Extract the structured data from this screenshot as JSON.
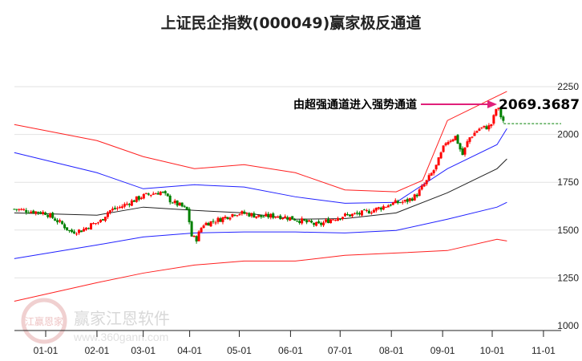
{
  "chart_data": {
    "type": "candlestick-channel",
    "title": "上证民企指数(000049)赢家极反通道",
    "ylim": [
      1000,
      2250
    ],
    "yticks": [
      2250,
      2000,
      1750,
      1500,
      1250,
      1000
    ],
    "xticks": [
      {
        "label": "01-01",
        "day": 0
      },
      {
        "label": "02-01",
        "day": 31
      },
      {
        "label": "03-01",
        "day": 59
      },
      {
        "label": "04-01",
        "day": 90
      },
      {
        "label": "05-01",
        "day": 120
      },
      {
        "label": "06-01",
        "day": 151
      },
      {
        "label": "07-01",
        "day": 181
      },
      {
        "label": "08-01",
        "day": 212
      },
      {
        "label": "09-01",
        "day": 243
      },
      {
        "label": "10-01",
        "day": 273
      },
      {
        "label": "11-01",
        "day": 304
      }
    ],
    "price_anchors": [
      [
        -19,
        1610
      ],
      [
        -10,
        1600
      ],
      [
        0,
        1590
      ],
      [
        5,
        1560
      ],
      [
        10,
        1530
      ],
      [
        15,
        1490
      ],
      [
        22,
        1500
      ],
      [
        28,
        1530
      ],
      [
        33,
        1545
      ],
      [
        38,
        1600
      ],
      [
        45,
        1620
      ],
      [
        52,
        1650
      ],
      [
        58,
        1675
      ],
      [
        64,
        1690
      ],
      [
        70,
        1700
      ],
      [
        76,
        1650
      ],
      [
        82,
        1625
      ],
      [
        86,
        1600
      ],
      [
        88,
        1470
      ],
      [
        91,
        1450
      ],
      [
        95,
        1530
      ],
      [
        105,
        1555
      ],
      [
        115,
        1590
      ],
      [
        122,
        1585
      ],
      [
        130,
        1570
      ],
      [
        140,
        1575
      ],
      [
        150,
        1560
      ],
      [
        158,
        1540
      ],
      [
        165,
        1525
      ],
      [
        172,
        1555
      ],
      [
        180,
        1575
      ],
      [
        190,
        1585
      ],
      [
        200,
        1610
      ],
      [
        210,
        1640
      ],
      [
        218,
        1650
      ],
      [
        224,
        1680
      ],
      [
        230,
        1750
      ],
      [
        236,
        1830
      ],
      [
        242,
        1960
      ],
      [
        248,
        1990
      ],
      [
        252,
        1890
      ],
      [
        256,
        1980
      ],
      [
        262,
        2030
      ],
      [
        268,
        2040
      ],
      [
        270,
        2060
      ],
      [
        273,
        2150
      ],
      [
        275,
        2100
      ],
      [
        277,
        2069
      ]
    ],
    "channels": [
      {
        "name": "upper-red",
        "color": "#ff2020",
        "points": [
          [
            -19,
            2052
          ],
          [
            31,
            1968
          ],
          [
            59,
            1884
          ],
          [
            90,
            1821
          ],
          [
            120,
            1842
          ],
          [
            151,
            1800
          ],
          [
            181,
            1710
          ],
          [
            212,
            1700
          ],
          [
            228,
            1760
          ],
          [
            243,
            2073
          ],
          [
            273,
            2200
          ],
          [
            279,
            2225
          ]
        ]
      },
      {
        "name": "upper-blue",
        "color": "#2020ff",
        "points": [
          [
            -19,
            1905
          ],
          [
            31,
            1800
          ],
          [
            59,
            1716
          ],
          [
            90,
            1737
          ],
          [
            120,
            1725
          ],
          [
            151,
            1674
          ],
          [
            181,
            1640
          ],
          [
            212,
            1645
          ],
          [
            243,
            1821
          ],
          [
            273,
            1947
          ],
          [
            279,
            2031
          ]
        ]
      },
      {
        "name": "middle",
        "color": "#222222",
        "points": [
          [
            -19,
            1590
          ],
          [
            31,
            1578
          ],
          [
            59,
            1620
          ],
          [
            90,
            1603
          ],
          [
            120,
            1590
          ],
          [
            151,
            1557
          ],
          [
            181,
            1560
          ],
          [
            212,
            1590
          ],
          [
            243,
            1695
          ],
          [
            273,
            1821
          ],
          [
            279,
            1872
          ]
        ]
      },
      {
        "name": "lower-blue",
        "color": "#2020ff",
        "points": [
          [
            -19,
            1351
          ],
          [
            31,
            1422
          ],
          [
            59,
            1464
          ],
          [
            90,
            1485
          ],
          [
            120,
            1490
          ],
          [
            151,
            1490
          ],
          [
            181,
            1485
          ],
          [
            212,
            1498
          ],
          [
            243,
            1557
          ],
          [
            273,
            1620
          ],
          [
            279,
            1645
          ]
        ]
      },
      {
        "name": "lower-red",
        "color": "#ff2020",
        "points": [
          [
            -19,
            1128
          ],
          [
            31,
            1225
          ],
          [
            59,
            1275
          ],
          [
            90,
            1317
          ],
          [
            120,
            1338
          ],
          [
            151,
            1338
          ],
          [
            181,
            1368
          ],
          [
            212,
            1380
          ],
          [
            243,
            1393
          ],
          [
            273,
            1452
          ],
          [
            279,
            1443
          ]
        ]
      }
    ],
    "annotation": "由超强通道进入强势通道",
    "last_value": "2069.3687",
    "up_color": "#ff0000",
    "down_color": "#008000"
  },
  "watermark": {
    "brand": "赢家江恩软件",
    "url": "www.360gann.com",
    "seal": "江赢恩家"
  }
}
